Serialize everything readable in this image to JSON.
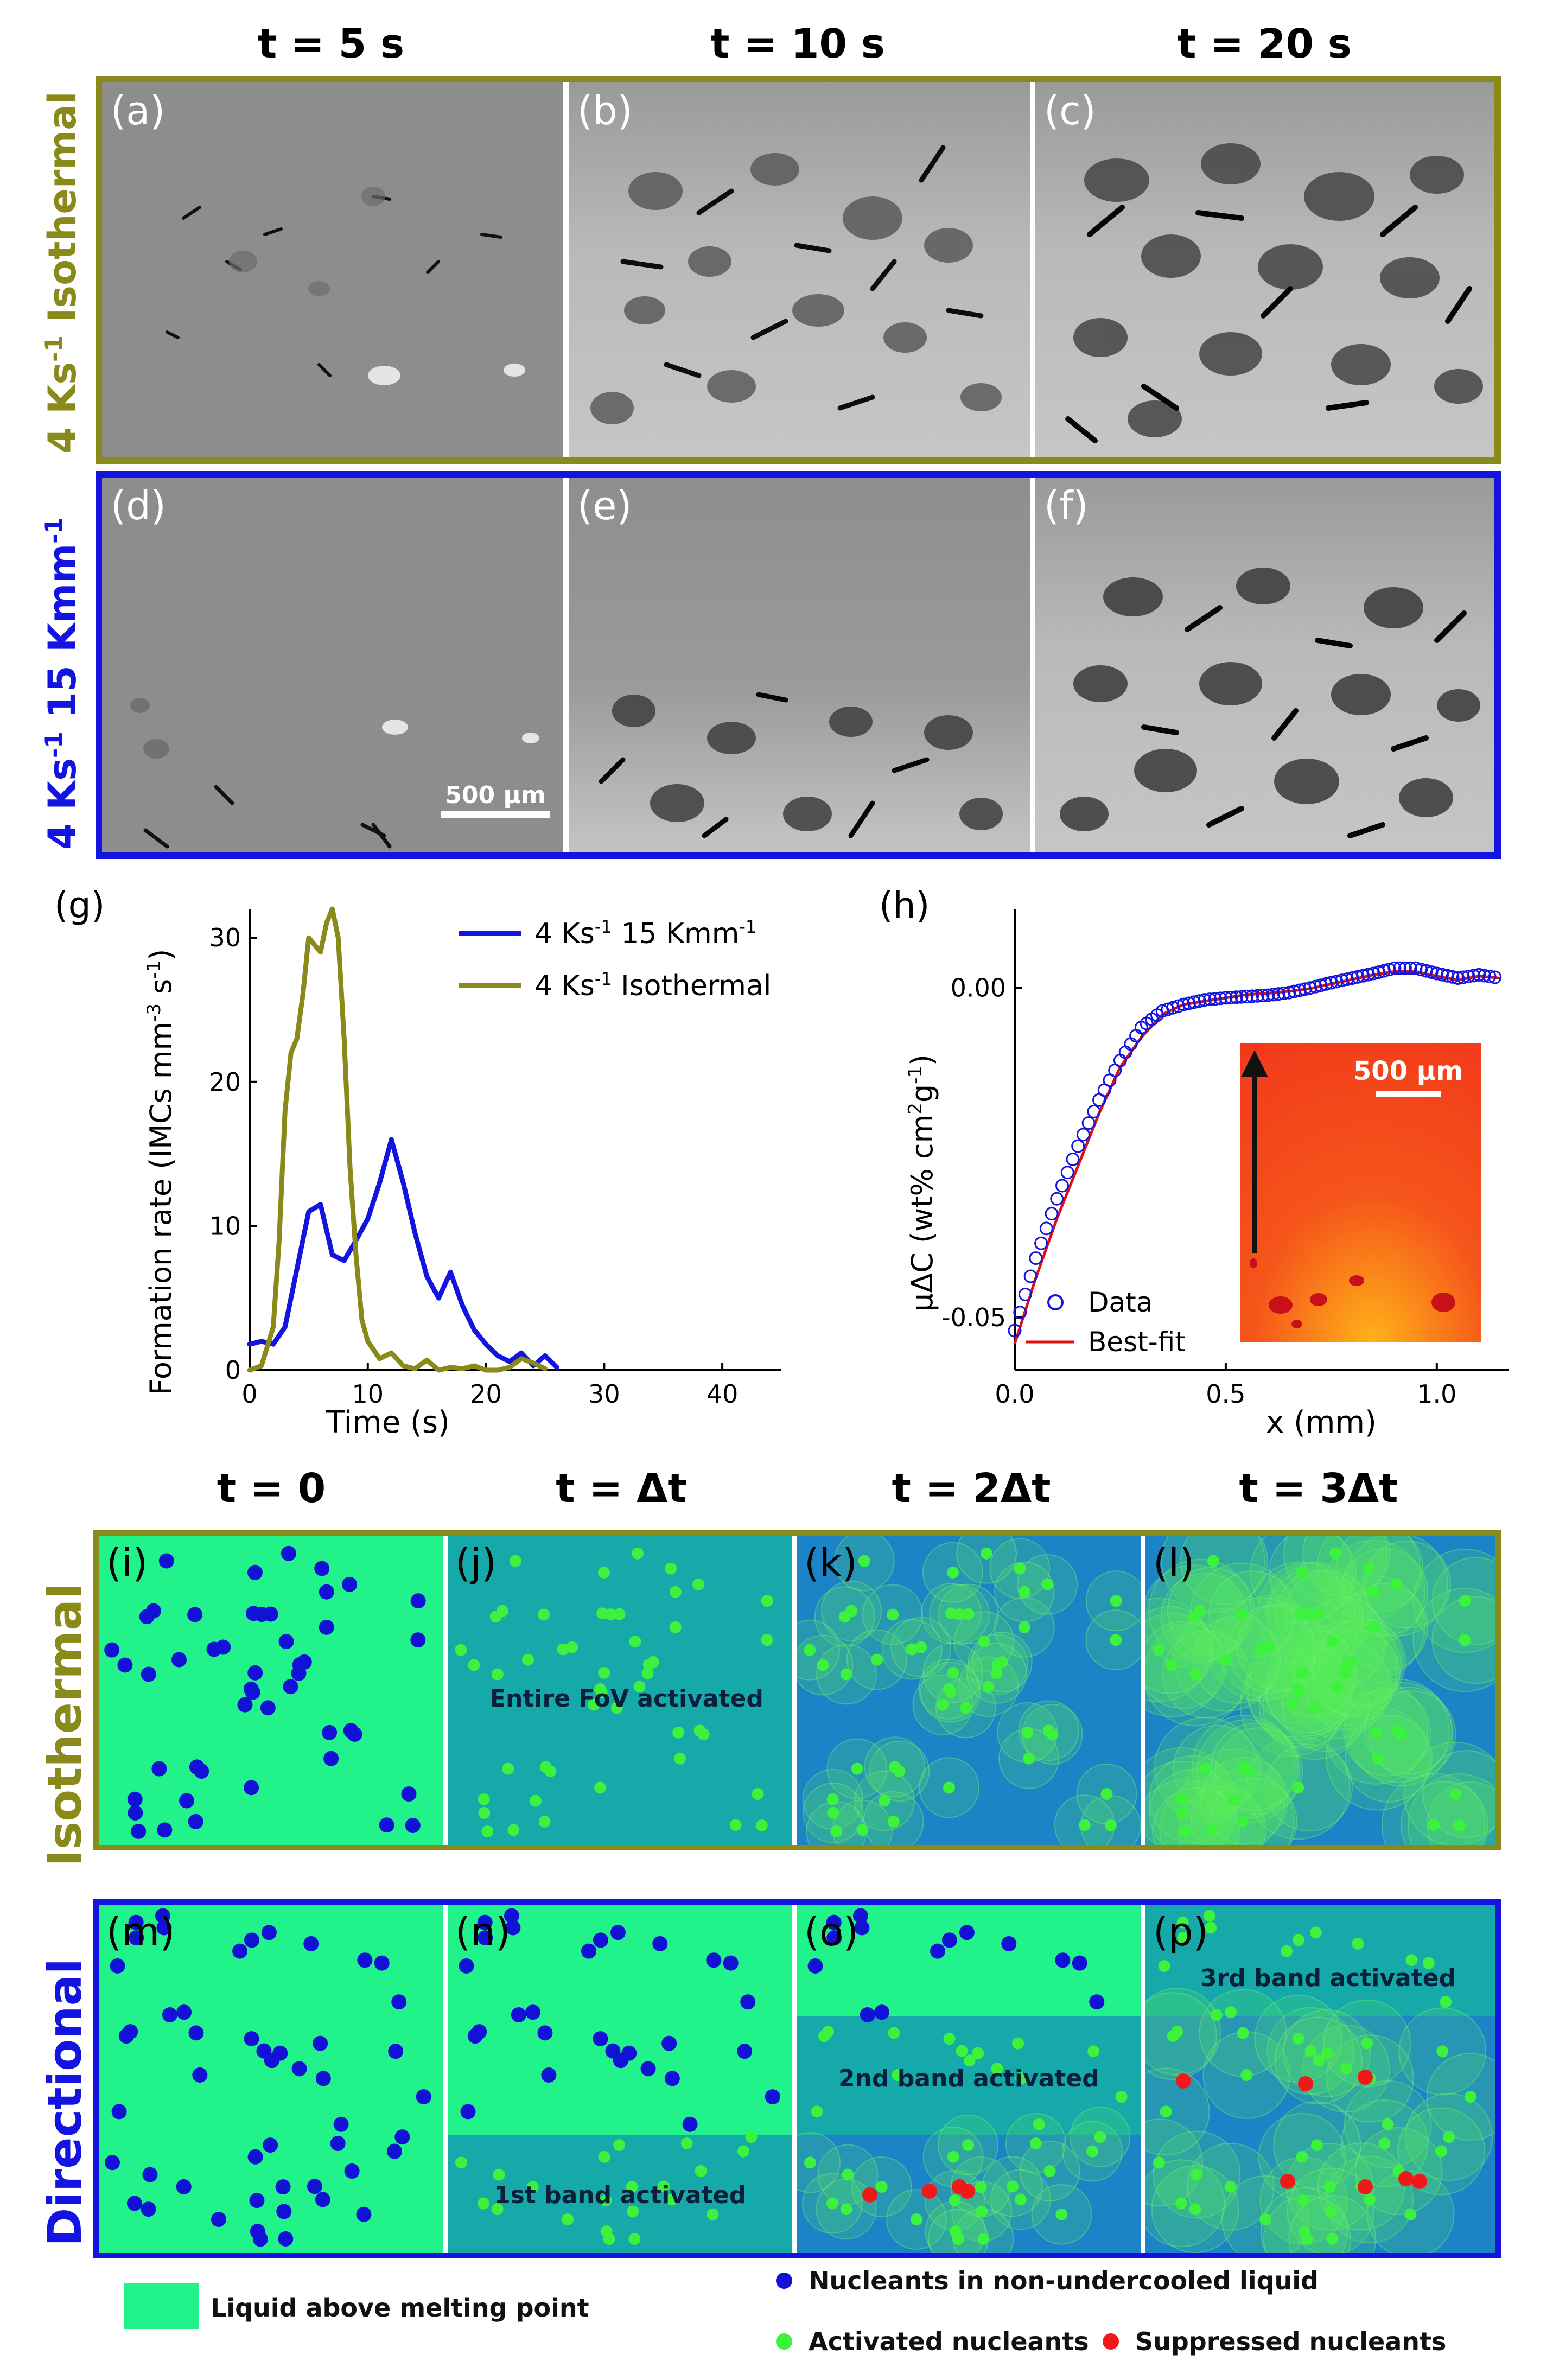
{
  "top_columns": [
    "t = 5 s",
    "t = 10 s",
    "t = 20 s"
  ],
  "top_rows": [
    {
      "label": "4 Ks-1 Isothermal",
      "color": "#8a8a1a",
      "panels": [
        "(a)",
        "(b)",
        "(c)"
      ]
    },
    {
      "label": "4 Ks-1 15 Kmm-1",
      "color": "#1414e0",
      "panels": [
        "(d)",
        "(e)",
        "(f)"
      ]
    }
  ],
  "scale_bar_top": "500 µm",
  "chart_data": [
    {
      "id": "g",
      "panel_label": "(g)",
      "type": "line",
      "xlabel": "Time (s)",
      "ylabel": "Formation rate (IMCs mm-3 s-1)",
      "xlim": [
        0,
        45
      ],
      "ylim": [
        0,
        32
      ],
      "xticks": [
        0,
        10,
        20,
        30,
        40
      ],
      "yticks": [
        0,
        10,
        20,
        30
      ],
      "legend_position": "top-right",
      "series": [
        {
          "name": "4 Ks-1 15 Kmm-1",
          "color": "#1414e0",
          "x": [
            0,
            1,
            2,
            3,
            4,
            5,
            6,
            7,
            8,
            9,
            10,
            11,
            12,
            13,
            14,
            15,
            16,
            17,
            18,
            19,
            20,
            21,
            22,
            23,
            24,
            25,
            26
          ],
          "y": [
            1.8,
            2,
            1.8,
            3,
            7,
            11,
            11.5,
            8,
            7.6,
            9,
            10.5,
            13,
            16,
            13,
            9.5,
            6.5,
            5,
            6.8,
            4.5,
            2.8,
            1.8,
            1,
            0.6,
            1.2,
            0.3,
            1,
            0.2
          ]
        },
        {
          "name": "4 Ks-1 Isothermal",
          "color": "#8a8a1a",
          "x": [
            0,
            1,
            2,
            2.5,
            3,
            3.5,
            4,
            4.5,
            5,
            5.5,
            6,
            6.5,
            7,
            7.5,
            8,
            8.5,
            9,
            9.5,
            10,
            11,
            12,
            13,
            14,
            15,
            16,
            17,
            18,
            19,
            20,
            21,
            22,
            23,
            24,
            25
          ],
          "y": [
            0,
            0.3,
            3,
            9,
            18,
            22,
            23,
            26,
            30,
            29.5,
            29,
            31,
            32,
            30,
            23,
            14,
            8,
            3.5,
            2,
            0.8,
            1.2,
            0.3,
            0.1,
            0.7,
            0,
            0.2,
            0.1,
            0.3,
            0,
            0,
            0.2,
            0.8,
            0.5,
            0.1
          ]
        }
      ]
    },
    {
      "id": "h",
      "panel_label": "(h)",
      "type": "scatter",
      "xlabel": "x (mm)",
      "ylabel": "µΔC (wt% cm2g-1)",
      "xlim": [
        0,
        1.17
      ],
      "ylim": [
        -0.058,
        0.012
      ],
      "xticks": [
        0.0,
        0.5,
        1.0
      ],
      "xtick_labels": [
        "0.0",
        "0.5",
        "1.0"
      ],
      "yticks": [
        0.0,
        -0.05
      ],
      "ytick_labels": [
        "0.00",
        "-0.05"
      ],
      "legend_position": "bottom-left",
      "series": [
        {
          "name": "Data",
          "style": "open-circle",
          "color": "#1414e0",
          "x": [
            0,
            0.05,
            0.1,
            0.15,
            0.2,
            0.25,
            0.3,
            0.35,
            0.4,
            0.45,
            0.5,
            0.55,
            0.6,
            0.65,
            0.7,
            0.75,
            0.8,
            0.85,
            0.9,
            0.95,
            1.0,
            1.05,
            1.1,
            1.15
          ],
          "y": [
            -0.052,
            -0.041,
            -0.032,
            -0.024,
            -0.017,
            -0.011,
            -0.006,
            -0.0035,
            -0.0025,
            -0.0018,
            -0.0015,
            -0.0013,
            -0.0011,
            -0.0007,
            0.0,
            0.0008,
            0.0015,
            0.0022,
            0.003,
            0.003,
            0.0022,
            0.0015,
            0.002,
            0.0015
          ]
        },
        {
          "name": "Best-fit",
          "style": "line",
          "color": "#e01010",
          "x": [
            0,
            0.05,
            0.1,
            0.15,
            0.2,
            0.25,
            0.3,
            0.35,
            0.4,
            0.45,
            0.5,
            0.55,
            0.6,
            0.65,
            0.7,
            0.75,
            0.8,
            0.85,
            0.9,
            0.95,
            1.0,
            1.05,
            1.1,
            1.15
          ],
          "y": [
            -0.054,
            -0.044,
            -0.035,
            -0.027,
            -0.019,
            -0.012,
            -0.0075,
            -0.004,
            -0.0025,
            -0.002,
            -0.0015,
            -0.001,
            -0.0008,
            -0.0005,
            -0.0001,
            0.0006,
            0.0013,
            0.002,
            0.0025,
            0.0025,
            0.0018,
            0.0012,
            0.0018,
            0.0015
          ]
        }
      ],
      "inset_scale_bar": "500 µm"
    }
  ],
  "bottom_columns": [
    "t = 0",
    "t = Δt",
    "t = 2Δt",
    "t = 3Δt"
  ],
  "bottom_rows": [
    {
      "label": "Isothermal",
      "color": "#8a8a1a",
      "panels": [
        "(i)",
        "(j)",
        "(k)",
        "(l)"
      ]
    },
    {
      "label": "Directional",
      "color": "#1414e0",
      "panels": [
        "(m)",
        "(n)",
        "(o)",
        "(p)"
      ]
    }
  ],
  "annotations": {
    "entire_fov": "Entire FoV activated",
    "band1": "1st band activated",
    "band2": "2nd band activated",
    "band3": "3rd band activated"
  },
  "legend": {
    "liquid": "Liquid above melting point",
    "nucleants": "Nucleants in non-undercooled liquid",
    "activated": "Activated nucleants",
    "suppressed": "Suppressed nucleants"
  },
  "colors": {
    "liquid": "#22f28a",
    "activated_region": "#16a9a9",
    "grown_region": "#1b83c6",
    "nucleant": "#1212d6",
    "activated": "#3cf23c",
    "suppressed": "#f01818"
  }
}
